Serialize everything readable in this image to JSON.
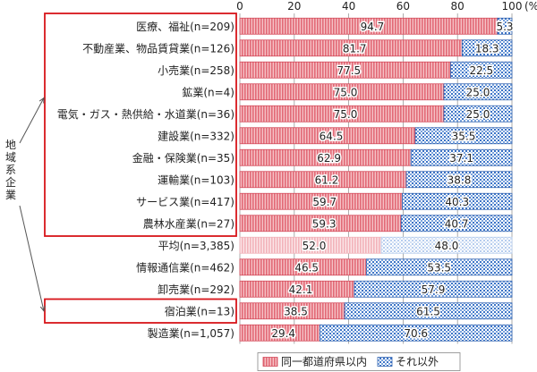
{
  "chart_data": {
    "type": "bar",
    "orientation": "horizontal",
    "stacked": true,
    "unit_label": "(%)",
    "xlim": [
      0,
      100
    ],
    "xticks": [
      "0",
      "20",
      "40",
      "60",
      "80",
      "100"
    ],
    "categories": [
      "医療、福祉(n=209)",
      "不動産業、物品賃貸業(n=126)",
      "小売業(n=258)",
      "鉱業(n=4)",
      "電気・ガス・熱供給・水道業(n=36)",
      "建設業(n=332)",
      "金融・保険業(n=35)",
      "運輸業(n=103)",
      "サービス業(n=417)",
      "農林水産業(n=27)",
      "平均(n=3,385)",
      "情報通信業(n=462)",
      "卸売業(n=292)",
      "宿泊業(n=13)",
      "製造業(n=1,057)"
    ],
    "series": [
      {
        "name": "同一都道府県以内",
        "color": "#e8737f",
        "values": [
          94.7,
          81.7,
          77.5,
          75.0,
          75.0,
          64.5,
          62.9,
          61.2,
          59.7,
          59.3,
          52.0,
          46.5,
          42.1,
          38.5,
          29.4
        ],
        "labels": [
          "94.7",
          "81.7",
          "77.5",
          "75.0",
          "75.0",
          "64.5",
          "62.9",
          "61.2",
          "59.7",
          "59.3",
          "52.0",
          "46.5",
          "42.1",
          "38.5",
          "29.4"
        ]
      },
      {
        "name": "それ以外",
        "color": "#3b73c6",
        "values": [
          5.3,
          18.3,
          22.5,
          25.0,
          25.0,
          35.5,
          37.1,
          38.8,
          40.3,
          40.7,
          48.0,
          53.5,
          57.9,
          61.5,
          70.6
        ],
        "labels": [
          "5.3",
          "18.3",
          "22.5",
          "25.0",
          "25.0",
          "35.5",
          "37.1",
          "38.8",
          "40.3",
          "40.7",
          "48.0",
          "53.5",
          "57.9",
          "61.5",
          "70.6"
        ]
      }
    ],
    "average_index": 10,
    "highlight_group": {
      "label": "地域系企業",
      "indices": [
        0,
        1,
        2,
        3,
        4,
        5,
        6,
        7,
        8,
        9,
        13
      ]
    },
    "highlight_color": "#d7141a",
    "legend_position": "bottom"
  }
}
